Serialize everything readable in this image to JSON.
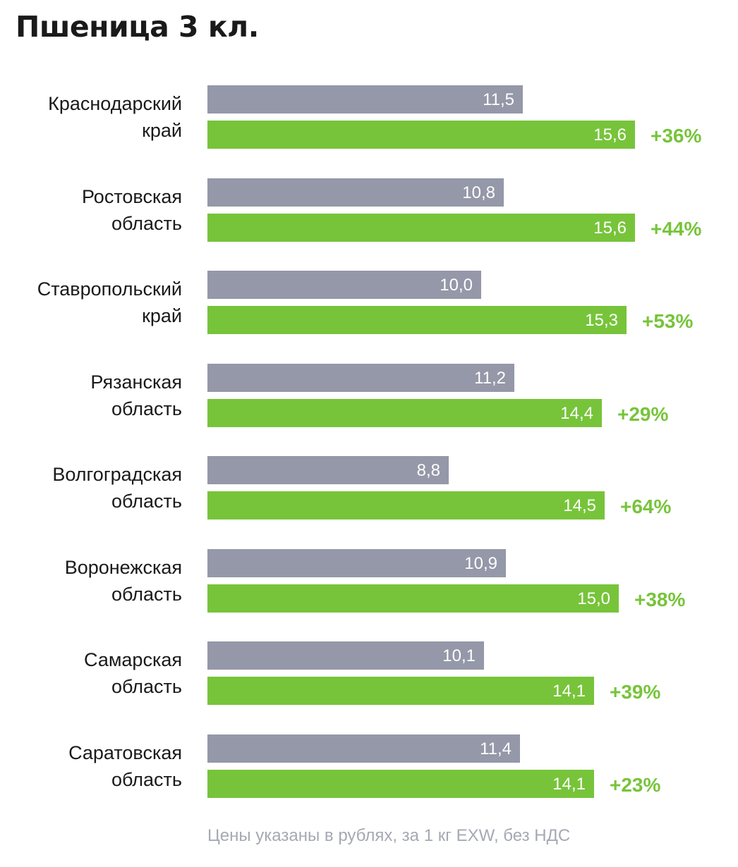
{
  "title": "Пшеница 3 кл.",
  "footnote": "Цены указаны в рублях, за 1 кг EXW, без НДС",
  "colors": {
    "previous": "#9498a8",
    "current": "#77c43a",
    "change_text": "#77c43a"
  },
  "chart_data": {
    "type": "bar",
    "orientation": "horizontal",
    "title": "Пшеница 3 кл.",
    "categories": [
      [
        "Краснодарский",
        "край"
      ],
      [
        "Ростовская",
        "область"
      ],
      [
        "Ставропольский",
        "край"
      ],
      [
        "Рязанская",
        "область"
      ],
      [
        "Волгоградская",
        "область"
      ],
      [
        "Воронежская",
        "область"
      ],
      [
        "Самарская",
        "область"
      ],
      [
        "Саратовская",
        "область"
      ]
    ],
    "series": [
      {
        "values": [
          11.5,
          10.8,
          10.0,
          11.2,
          8.8,
          10.9,
          10.1,
          11.4
        ],
        "labels": [
          "11,5",
          "10,8",
          "10,0",
          "11,2",
          "8,8",
          "10,9",
          "10,1",
          "11,4"
        ],
        "color": "#9498a8"
      },
      {
        "values": [
          15.6,
          15.6,
          15.3,
          14.4,
          14.5,
          15.0,
          14.1,
          14.1
        ],
        "labels": [
          "15,6",
          "15,6",
          "15,3",
          "14,4",
          "14,5",
          "15,0",
          "14,1",
          "14,1"
        ],
        "color": "#77c43a"
      }
    ],
    "changes": [
      "+36%",
      "+44%",
      "+53%",
      "+29%",
      "+64%",
      "+38%",
      "+39%",
      "+23%"
    ],
    "xlim": [
      0,
      20
    ],
    "grid": false,
    "legend": "none"
  }
}
